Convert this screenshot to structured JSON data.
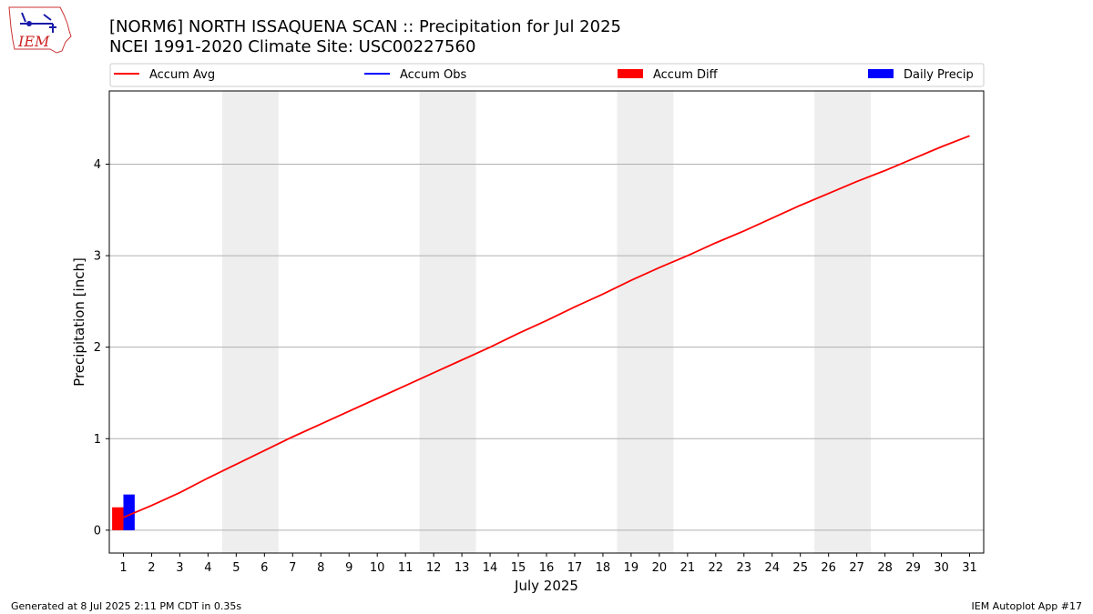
{
  "chart_data": {
    "type": "line",
    "title": "[NORM6] NORTH ISSAQUENA SCAN :: Precipitation for Jul 2025",
    "subtitle": "NCEI 1991-2020 Climate Site: USC00227560",
    "xlabel": "July 2025",
    "ylabel": "Precipitation [inch]",
    "xlim": [
      0.5,
      31.5
    ],
    "ylim": [
      -0.25,
      4.8
    ],
    "x_ticks": [
      1,
      2,
      3,
      4,
      5,
      6,
      7,
      8,
      9,
      10,
      11,
      12,
      13,
      14,
      15,
      16,
      17,
      18,
      19,
      20,
      21,
      22,
      23,
      24,
      25,
      26,
      27,
      28,
      29,
      30,
      31
    ],
    "y_ticks": [
      0,
      1,
      2,
      3,
      4
    ],
    "grid": "horizontal",
    "weekend_shading": [
      [
        4.5,
        6.5
      ],
      [
        11.5,
        13.5
      ],
      [
        18.5,
        20.5
      ],
      [
        25.5,
        27.5
      ]
    ],
    "legend": {
      "placement": "top",
      "entries": [
        {
          "label": "Accum Avg",
          "kind": "line",
          "color": "#ff0000"
        },
        {
          "label": "Accum Obs",
          "kind": "line",
          "color": "#0000ff"
        },
        {
          "label": "Accum Diff",
          "kind": "bar",
          "color": "#ff0000"
        },
        {
          "label": "Daily Precip",
          "kind": "bar",
          "color": "#0000ff"
        }
      ]
    },
    "series": [
      {
        "name": "Accum Avg",
        "kind": "line",
        "color": "#ff0000",
        "x": [
          1,
          2,
          3,
          4,
          5,
          6,
          7,
          8,
          9,
          10,
          11,
          12,
          13,
          14,
          15,
          16,
          17,
          18,
          19,
          20,
          21,
          22,
          23,
          24,
          25,
          26,
          27,
          28,
          29,
          30,
          31
        ],
        "values": [
          0.14,
          0.27,
          0.41,
          0.57,
          0.72,
          0.87,
          1.02,
          1.16,
          1.3,
          1.44,
          1.58,
          1.72,
          1.86,
          2.0,
          2.15,
          2.29,
          2.44,
          2.58,
          2.73,
          2.87,
          3.0,
          3.14,
          3.27,
          3.41,
          3.55,
          3.68,
          3.81,
          3.93,
          4.06,
          4.19,
          4.31
        ]
      },
      {
        "name": "Accum Diff",
        "kind": "bar",
        "color": "#ff0000",
        "x": [
          1
        ],
        "values": [
          0.25
        ]
      },
      {
        "name": "Daily Precip",
        "kind": "bar",
        "color": "#0000ff",
        "x": [
          1
        ],
        "values": [
          0.39
        ]
      }
    ]
  },
  "logo": {
    "text": "IEM"
  },
  "footer": {
    "left": "Generated at 8 Jul 2025 2:11 PM CDT in 0.35s",
    "right": "IEM Autoplot App #17"
  }
}
